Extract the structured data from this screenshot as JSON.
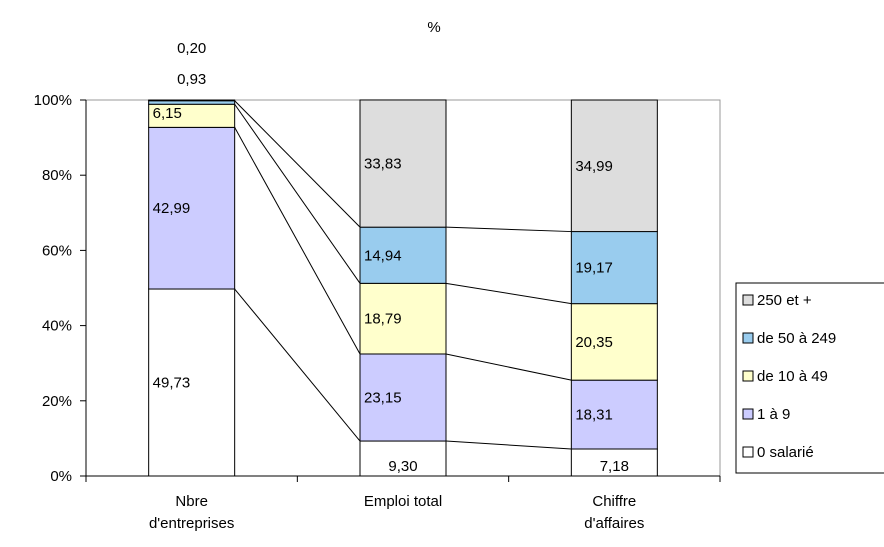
{
  "chart_data": {
    "type": "bar",
    "stacked": true,
    "percent_stacked": true,
    "title": "",
    "subtitle": "%",
    "categories": [
      "Nbre d'entreprises",
      "Emploi total",
      "Chiffre d'affaires"
    ],
    "category_lines": [
      [
        "Nbre",
        "d'entreprises"
      ],
      [
        "Emploi total"
      ],
      [
        "Chiffre",
        "d'affaires"
      ]
    ],
    "series": [
      {
        "name": "0 salarié",
        "values": [
          49.73,
          9.3,
          7.18
        ],
        "color": "#ffffff"
      },
      {
        "name": "1 à 9",
        "values": [
          42.99,
          23.15,
          18.31
        ],
        "color": "#ccccff"
      },
      {
        "name": "de 10 à 49",
        "values": [
          6.15,
          18.79,
          20.35
        ],
        "color": "#ffffcc"
      },
      {
        "name": "de 50 à 249",
        "values": [
          0.93,
          14.94,
          19.17
        ],
        "color": "#99ccee"
      },
      {
        "name": "250 et +",
        "values": [
          0.2,
          33.83,
          34.99
        ],
        "color": "#dddddd"
      }
    ],
    "data_labels": [
      [
        "49,73",
        "9,30",
        "7,18"
      ],
      [
        "42,99",
        "23,15",
        "18,31"
      ],
      [
        "6,15",
        "18,79",
        "20,35"
      ],
      [
        "0,93",
        "14,94",
        "19,17"
      ],
      [
        "0,20",
        "33,83",
        "34,99"
      ]
    ],
    "legend_labels": [
      "250 et +",
      "de 50 à 249",
      "de 10 à 49",
      "1 à 9",
      "0 salarié"
    ],
    "y_ticks": [
      "0%",
      "20%",
      "40%",
      "60%",
      "80%",
      "100%"
    ],
    "ylim": [
      0,
      100
    ],
    "series_lines": true,
    "legend_position": "right",
    "grid": false
  }
}
